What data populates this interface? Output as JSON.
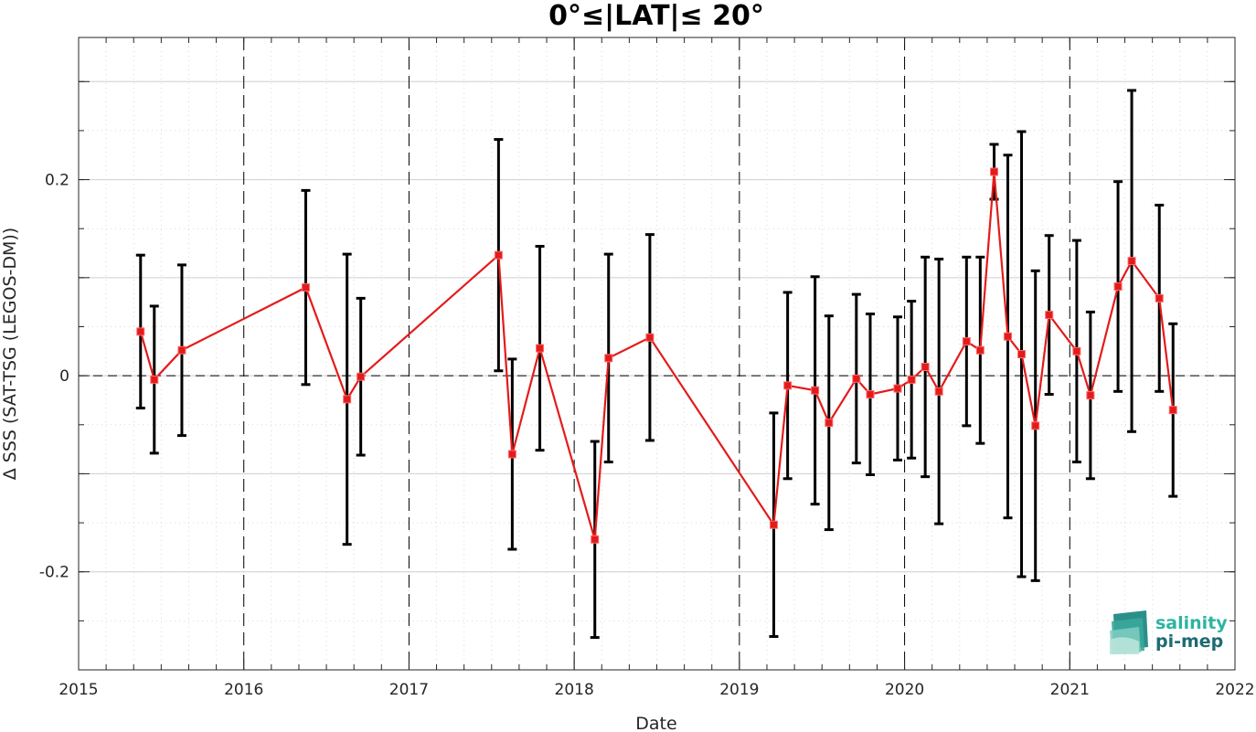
{
  "chart_data": {
    "type": "line",
    "title": "0°≤|LAT|≤ 20°",
    "xlabel": "Date",
    "ylabel": "Δ SSS (SAT-TSG (LEGOS-DM))",
    "xlim": [
      2015,
      2022
    ],
    "ylim": [
      -0.3,
      0.345
    ],
    "x_ticks": [
      2015,
      2016,
      2017,
      2018,
      2019,
      2020,
      2021,
      2022
    ],
    "x_tick_labels": [
      "2015",
      "2016",
      "2017",
      "2018",
      "2019",
      "2020",
      "2021",
      "2022"
    ],
    "y_ticks": [
      -0.2,
      0,
      0.2
    ],
    "y_tick_labels": [
      "-0.2",
      "0",
      "0.2"
    ],
    "grid": true,
    "zero_line": true,
    "year_separators": true,
    "colors": {
      "series": "#e31b1b",
      "errorbar": "#000000"
    },
    "series": [
      {
        "marker": "square",
        "x": [
          2015.375,
          2015.458,
          2015.625,
          2016.375,
          2016.625,
          2016.708,
          2017.542,
          2017.625,
          2017.792,
          2018.125,
          2018.208,
          2018.458,
          2019.208,
          2019.292,
          2019.458,
          2019.542,
          2019.708,
          2019.792,
          2019.958,
          2020.042,
          2020.125,
          2020.208,
          2020.375,
          2020.458,
          2020.542,
          2020.625,
          2020.708,
          2020.792,
          2020.875,
          2021.042,
          2021.125,
          2021.292,
          2021.375,
          2021.542,
          2021.625
        ],
        "y": [
          0.045,
          -0.004,
          0.026,
          0.09,
          -0.024,
          -0.001,
          0.123,
          -0.08,
          0.028,
          -0.167,
          0.018,
          0.039,
          -0.152,
          -0.01,
          -0.015,
          -0.048,
          -0.003,
          -0.019,
          -0.013,
          -0.004,
          0.009,
          -0.016,
          0.035,
          0.026,
          0.208,
          0.04,
          0.022,
          -0.051,
          0.062,
          0.025,
          -0.02,
          0.091,
          0.117,
          0.079,
          -0.035
        ],
        "err": [
          0.078,
          0.075,
          0.087,
          0.099,
          0.148,
          0.08,
          0.118,
          0.097,
          0.104,
          0.1,
          0.106,
          0.105,
          0.114,
          0.095,
          0.116,
          0.109,
          0.086,
          0.082,
          0.073,
          0.08,
          0.112,
          0.135,
          0.086,
          0.095,
          0.028,
          0.185,
          0.227,
          0.158,
          0.081,
          0.113,
          0.085,
          0.107,
          0.174,
          0.095,
          0.088
        ]
      }
    ]
  },
  "logo": {
    "line1": "salinity",
    "line2": "pi-mep"
  }
}
